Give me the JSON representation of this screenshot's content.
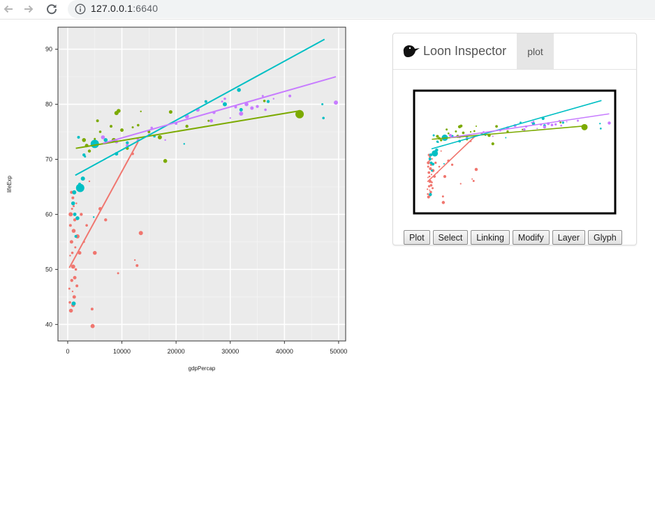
{
  "browser": {
    "url_host": "127.0.0.1",
    "url_port": ":6640"
  },
  "inspector": {
    "title": "Loon Inspector",
    "tab": "plot",
    "buttons": [
      "Plot",
      "Select",
      "Linking",
      "Modify",
      "Layer",
      "Glyph"
    ]
  },
  "colors": {
    "panel_bg": "#ebebeb",
    "grid": "#ffffff",
    "Africa": "#f8766d",
    "Americas": "#a3a500",
    "Asia": "#00bf7d",
    "Europe": "#00b0f6",
    "Oceania": "#e76bf3",
    "red": "#f0766f",
    "olive": "#7caa00",
    "teal": "#00bfc4",
    "purple": "#c77cff"
  },
  "chart_data": {
    "type": "scatter",
    "xlabel": "gdpPercap",
    "ylabel": "lifeExp",
    "xlim": [
      -1800,
      51300
    ],
    "ylim": [
      37,
      94
    ],
    "x_ticks": [
      0,
      10000,
      20000,
      30000,
      40000,
      50000
    ],
    "y_ticks": [
      40,
      50,
      60,
      70,
      80,
      90
    ],
    "x_tick_labels": [
      "0",
      "10000",
      "20000",
      "30000",
      "40000",
      "50000"
    ],
    "y_tick_labels": [
      "40",
      "50",
      "60",
      "70",
      "80",
      "90"
    ],
    "grid": true,
    "series": [
      {
        "color": "red",
        "trend": [
          [
            300,
            50.3
          ],
          [
            13000,
            73.2
          ]
        ],
        "points": [
          [
            300,
            46.5
          ],
          [
            400,
            44
          ],
          [
            450,
            52.5
          ],
          [
            500,
            58
          ],
          [
            550,
            60
          ],
          [
            600,
            42.5
          ],
          [
            700,
            55
          ],
          [
            750,
            48
          ],
          [
            800,
            61
          ],
          [
            850,
            53
          ],
          [
            900,
            46
          ],
          [
            950,
            63
          ],
          [
            1000,
            50.5
          ],
          [
            1100,
            57
          ],
          [
            1200,
            45
          ],
          [
            1300,
            59
          ],
          [
            1400,
            54
          ],
          [
            1500,
            50
          ],
          [
            1600,
            62
          ],
          [
            1700,
            47
          ],
          [
            1800,
            56
          ],
          [
            2000,
            65
          ],
          [
            2200,
            53
          ],
          [
            2500,
            60
          ],
          [
            3000,
            55
          ],
          [
            3500,
            58
          ],
          [
            4000,
            66
          ],
          [
            4500,
            42.8
          ],
          [
            4600,
            39.7
          ],
          [
            5000,
            53
          ],
          [
            6000,
            61
          ],
          [
            7000,
            59
          ],
          [
            9300,
            49.3
          ],
          [
            12000,
            71
          ],
          [
            12400,
            51.7
          ],
          [
            12800,
            50.7
          ],
          [
            13500,
            56.6
          ],
          [
            1000,
            43.5
          ],
          [
            1300,
            48.5
          ],
          [
            700,
            64
          ],
          [
            1100,
            61.5
          ]
        ]
      },
      {
        "color": "olive",
        "trend": [
          [
            1500,
            72
          ],
          [
            42800,
            78.8
          ]
        ],
        "points": [
          [
            3000,
            73.5
          ],
          [
            3500,
            72.5
          ],
          [
            4000,
            71.5
          ],
          [
            5000,
            73.7
          ],
          [
            6000,
            75
          ],
          [
            7000,
            73
          ],
          [
            8000,
            76
          ],
          [
            9000,
            78.4
          ],
          [
            9400,
            78.8
          ],
          [
            10000,
            75.3
          ],
          [
            11000,
            72
          ],
          [
            12000,
            75.8
          ],
          [
            13000,
            76.2
          ],
          [
            13500,
            78.7
          ],
          [
            15000,
            75
          ],
          [
            17000,
            74
          ],
          [
            18000,
            69.7
          ],
          [
            19000,
            78.6
          ],
          [
            22000,
            76
          ],
          [
            26000,
            77
          ],
          [
            36300,
            80.6
          ],
          [
            42800,
            78.2
          ],
          [
            5500,
            77
          ],
          [
            8500,
            73.5
          ]
        ]
      },
      {
        "color": "teal",
        "trend": [
          [
            1400,
            67.1
          ],
          [
            47400,
            91.8
          ]
        ],
        "points": [
          [
            2300,
            64.8
          ],
          [
            2200,
            65.5
          ],
          [
            1200,
            64
          ],
          [
            1000,
            62
          ],
          [
            1300,
            60
          ],
          [
            3000,
            70.8
          ],
          [
            3200,
            70.5
          ],
          [
            4500,
            73
          ],
          [
            5000,
            72.5
          ],
          [
            2000,
            74
          ],
          [
            2800,
            66.5
          ],
          [
            7000,
            73.5
          ],
          [
            9000,
            71
          ],
          [
            11000,
            73
          ],
          [
            13000,
            73.5
          ],
          [
            16000,
            74.2
          ],
          [
            21500,
            72.8
          ],
          [
            25500,
            80.5
          ],
          [
            29000,
            80
          ],
          [
            31600,
            82.6
          ],
          [
            32000,
            79
          ],
          [
            37000,
            80.5
          ],
          [
            47000,
            80
          ],
          [
            47200,
            77.5
          ],
          [
            4800,
            59.5
          ],
          [
            1500,
            56
          ],
          [
            1100,
            43.8
          ],
          [
            1800,
            59.3
          ]
        ]
      },
      {
        "color": "purple",
        "trend": [
          [
            6500,
            72.9
          ],
          [
            49500,
            85
          ]
        ],
        "points": [
          [
            13000,
            73.5
          ],
          [
            15000,
            74.5
          ],
          [
            15500,
            75.7
          ],
          [
            18000,
            73.5
          ],
          [
            20000,
            76.5
          ],
          [
            22000,
            77.8
          ],
          [
            24000,
            79
          ],
          [
            26500,
            77
          ],
          [
            27000,
            78.5
          ],
          [
            28500,
            80.5
          ],
          [
            29000,
            81
          ],
          [
            30000,
            77.5
          ],
          [
            31000,
            79.5
          ],
          [
            32000,
            78.3
          ],
          [
            33000,
            80
          ],
          [
            34000,
            79.3
          ],
          [
            35000,
            79.6
          ],
          [
            36000,
            81.5
          ],
          [
            36500,
            79
          ],
          [
            38000,
            81
          ],
          [
            41000,
            81.5
          ],
          [
            49500,
            80.3
          ],
          [
            6500,
            74
          ],
          [
            9000,
            73.2
          ],
          [
            11000,
            72.5
          ]
        ]
      }
    ]
  }
}
